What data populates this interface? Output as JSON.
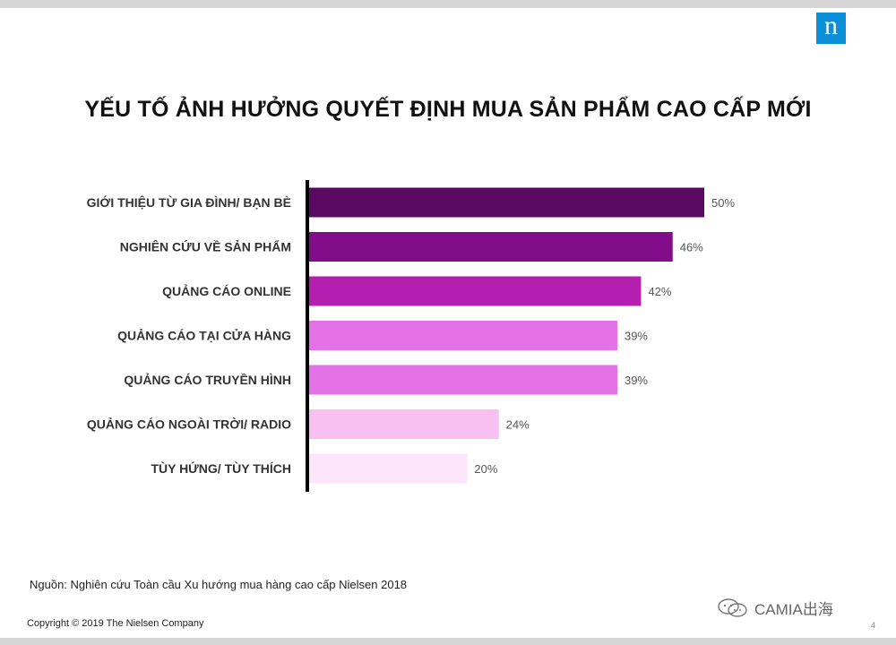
{
  "header": {
    "logo_letter": "n",
    "title": "YẾU TỐ ẢNH HƯỞNG QUYẾT ĐỊNH MUA SẢN PHẨM CAO CẤP MỚI"
  },
  "chart_data": {
    "type": "bar",
    "orientation": "horizontal",
    "title": "YẾU TỐ ẢNH HƯỞNG QUYẾT ĐỊNH MUA SẢN PHẨM CAO CẤP MỚI",
    "categories": [
      "GIỚI THIỆU TỪ GIA ĐÌNH/ BẠN BÈ",
      "NGHIÊN CỨU VỀ SẢN PHẨM",
      "QUẢNG CÁO ONLINE",
      "QUẢNG CÁO TẠI CỬA HÀNG",
      "QUẢNG CÁO TRUYỀN HÌNH",
      "QUẢNG CÁO NGOÀI TRỜI/ RADIO",
      "TÙY HỨNG/ TÙY THÍCH"
    ],
    "values": [
      50,
      46,
      42,
      39,
      39,
      24,
      20
    ],
    "value_labels": [
      "50%",
      "46%",
      "42%",
      "39%",
      "39%",
      "24%",
      "20%"
    ],
    "colors": [
      "#5a0a63",
      "#820d8a",
      "#b41fb0",
      "#e272e6",
      "#e272e6",
      "#f7c0f1",
      "#fbe6fa"
    ],
    "xlabel": "",
    "ylabel": "",
    "xlim": [
      0,
      50
    ],
    "grid": false,
    "legend": "none"
  },
  "footer": {
    "source": "Nguồn: Nghiên cứu Toàn cầu Xu hướng mua hàng cao cấp Nielsen 2018",
    "copyright": "Copyright © 2019  The Nielsen Company",
    "page_number": "4",
    "watermark": "CAMIA出海"
  }
}
